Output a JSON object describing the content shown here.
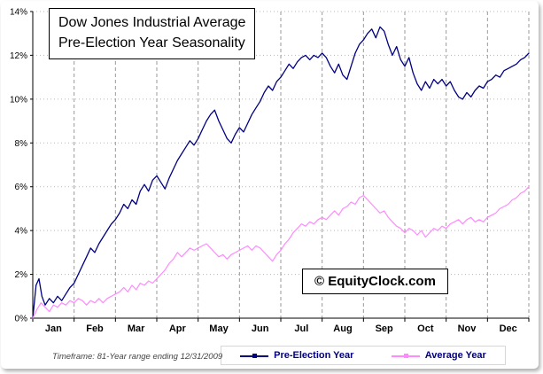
{
  "chart_data": {
    "type": "line",
    "title_lines": [
      "Dow Jones Industrial Average",
      "Pre-Election Year Seasonality"
    ],
    "x_categories": [
      "Jan",
      "Feb",
      "Mar",
      "Apr",
      "May",
      "Jun",
      "Jul",
      "Aug",
      "Sep",
      "Oct",
      "Nov",
      "Dec"
    ],
    "ylim": [
      0,
      14
    ],
    "ytick_step": 2,
    "ytick_labels": [
      "0%",
      "2%",
      "4%",
      "6%",
      "8%",
      "10%",
      "12%",
      "14%"
    ],
    "grid": {
      "horizontal": "dotted",
      "vertical": "dashed"
    },
    "legend_position": "bottom",
    "series": [
      {
        "name": "Pre-Election Year",
        "color": "#000080",
        "points": [
          [
            0,
            0.0
          ],
          [
            0.08,
            1.5
          ],
          [
            0.15,
            1.8
          ],
          [
            0.22,
            1.0
          ],
          [
            0.3,
            0.6
          ],
          [
            0.4,
            0.9
          ],
          [
            0.5,
            0.7
          ],
          [
            0.6,
            1.0
          ],
          [
            0.7,
            0.8
          ],
          [
            0.8,
            1.1
          ],
          [
            0.9,
            1.4
          ],
          [
            1.0,
            1.6
          ],
          [
            1.1,
            2.0
          ],
          [
            1.2,
            2.4
          ],
          [
            1.3,
            2.8
          ],
          [
            1.4,
            3.2
          ],
          [
            1.5,
            3.0
          ],
          [
            1.6,
            3.4
          ],
          [
            1.7,
            3.7
          ],
          [
            1.8,
            4.0
          ],
          [
            1.9,
            4.3
          ],
          [
            2.0,
            4.5
          ],
          [
            2.1,
            4.8
          ],
          [
            2.2,
            5.2
          ],
          [
            2.3,
            5.0
          ],
          [
            2.4,
            5.4
          ],
          [
            2.5,
            5.2
          ],
          [
            2.6,
            5.8
          ],
          [
            2.7,
            6.1
          ],
          [
            2.8,
            5.8
          ],
          [
            2.9,
            6.3
          ],
          [
            3.0,
            6.5
          ],
          [
            3.1,
            6.2
          ],
          [
            3.2,
            5.9
          ],
          [
            3.3,
            6.4
          ],
          [
            3.4,
            6.8
          ],
          [
            3.5,
            7.2
          ],
          [
            3.6,
            7.5
          ],
          [
            3.7,
            7.8
          ],
          [
            3.8,
            8.1
          ],
          [
            3.9,
            7.9
          ],
          [
            4.0,
            8.2
          ],
          [
            4.1,
            8.6
          ],
          [
            4.2,
            9.0
          ],
          [
            4.3,
            9.3
          ],
          [
            4.4,
            9.5
          ],
          [
            4.5,
            9.0
          ],
          [
            4.6,
            8.6
          ],
          [
            4.7,
            8.2
          ],
          [
            4.8,
            8.0
          ],
          [
            4.9,
            8.4
          ],
          [
            5.0,
            8.7
          ],
          [
            5.1,
            8.5
          ],
          [
            5.2,
            8.9
          ],
          [
            5.3,
            9.3
          ],
          [
            5.4,
            9.6
          ],
          [
            5.5,
            9.9
          ],
          [
            5.6,
            10.3
          ],
          [
            5.7,
            10.6
          ],
          [
            5.8,
            10.4
          ],
          [
            5.9,
            10.8
          ],
          [
            6.0,
            11.0
          ],
          [
            6.1,
            11.3
          ],
          [
            6.2,
            11.6
          ],
          [
            6.3,
            11.4
          ],
          [
            6.4,
            11.7
          ],
          [
            6.5,
            11.9
          ],
          [
            6.6,
            12.0
          ],
          [
            6.7,
            11.8
          ],
          [
            6.8,
            12.0
          ],
          [
            6.9,
            11.9
          ],
          [
            7.0,
            12.1
          ],
          [
            7.1,
            11.9
          ],
          [
            7.2,
            11.5
          ],
          [
            7.3,
            11.2
          ],
          [
            7.4,
            11.6
          ],
          [
            7.5,
            11.1
          ],
          [
            7.6,
            10.9
          ],
          [
            7.7,
            11.5
          ],
          [
            7.8,
            12.1
          ],
          [
            7.9,
            12.5
          ],
          [
            8.0,
            12.7
          ],
          [
            8.1,
            13.0
          ],
          [
            8.2,
            13.2
          ],
          [
            8.3,
            12.8
          ],
          [
            8.4,
            13.3
          ],
          [
            8.5,
            13.1
          ],
          [
            8.6,
            12.5
          ],
          [
            8.7,
            12.0
          ],
          [
            8.8,
            12.4
          ],
          [
            8.9,
            11.8
          ],
          [
            9.0,
            11.5
          ],
          [
            9.1,
            11.9
          ],
          [
            9.2,
            11.2
          ],
          [
            9.3,
            10.7
          ],
          [
            9.4,
            10.4
          ],
          [
            9.5,
            10.8
          ],
          [
            9.6,
            10.5
          ],
          [
            9.7,
            10.9
          ],
          [
            9.8,
            10.7
          ],
          [
            9.9,
            10.9
          ],
          [
            10.0,
            10.6
          ],
          [
            10.1,
            10.8
          ],
          [
            10.2,
            10.4
          ],
          [
            10.3,
            10.1
          ],
          [
            10.4,
            10.0
          ],
          [
            10.5,
            10.3
          ],
          [
            10.6,
            10.1
          ],
          [
            10.7,
            10.4
          ],
          [
            10.8,
            10.6
          ],
          [
            10.9,
            10.5
          ],
          [
            11.0,
            10.8
          ],
          [
            11.1,
            10.9
          ],
          [
            11.2,
            11.1
          ],
          [
            11.3,
            11.0
          ],
          [
            11.4,
            11.3
          ],
          [
            11.5,
            11.4
          ],
          [
            11.6,
            11.5
          ],
          [
            11.7,
            11.6
          ],
          [
            11.8,
            11.8
          ],
          [
            11.9,
            11.9
          ],
          [
            12.0,
            12.1
          ]
        ]
      },
      {
        "name": "Average Year",
        "color": "#ff8aff",
        "points": [
          [
            0,
            0.0
          ],
          [
            0.1,
            0.4
          ],
          [
            0.2,
            0.7
          ],
          [
            0.3,
            0.5
          ],
          [
            0.4,
            0.3
          ],
          [
            0.5,
            0.6
          ],
          [
            0.6,
            0.5
          ],
          [
            0.7,
            0.7
          ],
          [
            0.8,
            0.6
          ],
          [
            0.9,
            0.8
          ],
          [
            1.0,
            0.7
          ],
          [
            1.1,
            0.9
          ],
          [
            1.2,
            0.8
          ],
          [
            1.3,
            0.6
          ],
          [
            1.4,
            0.8
          ],
          [
            1.5,
            0.7
          ],
          [
            1.6,
            0.9
          ],
          [
            1.7,
            0.7
          ],
          [
            1.8,
            0.9
          ],
          [
            1.9,
            1.0
          ],
          [
            2.0,
            1.1
          ],
          [
            2.1,
            1.2
          ],
          [
            2.2,
            1.4
          ],
          [
            2.3,
            1.2
          ],
          [
            2.4,
            1.5
          ],
          [
            2.5,
            1.3
          ],
          [
            2.6,
            1.6
          ],
          [
            2.7,
            1.5
          ],
          [
            2.8,
            1.7
          ],
          [
            2.9,
            1.6
          ],
          [
            3.0,
            1.8
          ],
          [
            3.1,
            2.0
          ],
          [
            3.2,
            2.2
          ],
          [
            3.3,
            2.5
          ],
          [
            3.4,
            2.7
          ],
          [
            3.5,
            3.0
          ],
          [
            3.6,
            2.8
          ],
          [
            3.7,
            3.0
          ],
          [
            3.8,
            3.2
          ],
          [
            3.9,
            3.1
          ],
          [
            4.0,
            3.2
          ],
          [
            4.1,
            3.3
          ],
          [
            4.2,
            3.4
          ],
          [
            4.3,
            3.2
          ],
          [
            4.4,
            3.0
          ],
          [
            4.5,
            2.8
          ],
          [
            4.6,
            2.9
          ],
          [
            4.7,
            2.7
          ],
          [
            4.8,
            2.9
          ],
          [
            4.9,
            3.0
          ],
          [
            5.0,
            3.1
          ],
          [
            5.1,
            3.2
          ],
          [
            5.2,
            3.3
          ],
          [
            5.3,
            3.1
          ],
          [
            5.4,
            3.3
          ],
          [
            5.5,
            3.2
          ],
          [
            5.6,
            3.0
          ],
          [
            5.7,
            2.8
          ],
          [
            5.8,
            2.6
          ],
          [
            5.9,
            2.9
          ],
          [
            6.0,
            3.1
          ],
          [
            6.1,
            3.4
          ],
          [
            6.2,
            3.6
          ],
          [
            6.3,
            3.9
          ],
          [
            6.4,
            4.1
          ],
          [
            6.5,
            4.3
          ],
          [
            6.6,
            4.2
          ],
          [
            6.7,
            4.4
          ],
          [
            6.8,
            4.3
          ],
          [
            6.9,
            4.5
          ],
          [
            7.0,
            4.6
          ],
          [
            7.1,
            4.5
          ],
          [
            7.2,
            4.7
          ],
          [
            7.3,
            4.9
          ],
          [
            7.4,
            4.7
          ],
          [
            7.5,
            5.0
          ],
          [
            7.6,
            5.1
          ],
          [
            7.7,
            5.3
          ],
          [
            7.8,
            5.2
          ],
          [
            7.9,
            5.5
          ],
          [
            8.0,
            5.6
          ],
          [
            8.1,
            5.4
          ],
          [
            8.2,
            5.2
          ],
          [
            8.3,
            5.0
          ],
          [
            8.4,
            4.8
          ],
          [
            8.5,
            4.9
          ],
          [
            8.6,
            4.6
          ],
          [
            8.7,
            4.4
          ],
          [
            8.8,
            4.2
          ],
          [
            8.9,
            4.1
          ],
          [
            9.0,
            3.9
          ],
          [
            9.1,
            4.1
          ],
          [
            9.2,
            4.0
          ],
          [
            9.3,
            3.8
          ],
          [
            9.4,
            4.0
          ],
          [
            9.5,
            3.7
          ],
          [
            9.6,
            3.9
          ],
          [
            9.7,
            4.1
          ],
          [
            9.8,
            4.0
          ],
          [
            9.9,
            4.2
          ],
          [
            10.0,
            4.1
          ],
          [
            10.1,
            4.3
          ],
          [
            10.2,
            4.4
          ],
          [
            10.3,
            4.5
          ],
          [
            10.4,
            4.3
          ],
          [
            10.5,
            4.5
          ],
          [
            10.6,
            4.6
          ],
          [
            10.7,
            4.4
          ],
          [
            10.8,
            4.5
          ],
          [
            10.9,
            4.4
          ],
          [
            11.0,
            4.6
          ],
          [
            11.1,
            4.7
          ],
          [
            11.2,
            4.8
          ],
          [
            11.3,
            5.0
          ],
          [
            11.4,
            5.1
          ],
          [
            11.5,
            5.2
          ],
          [
            11.6,
            5.4
          ],
          [
            11.7,
            5.5
          ],
          [
            11.8,
            5.7
          ],
          [
            11.9,
            5.8
          ],
          [
            12.0,
            6.0
          ]
        ]
      }
    ]
  },
  "watermark": {
    "text": "© EquityClock.com"
  },
  "footer": {
    "timeframe_note": "Timeframe: 81-Year range ending 12/31/2009"
  }
}
